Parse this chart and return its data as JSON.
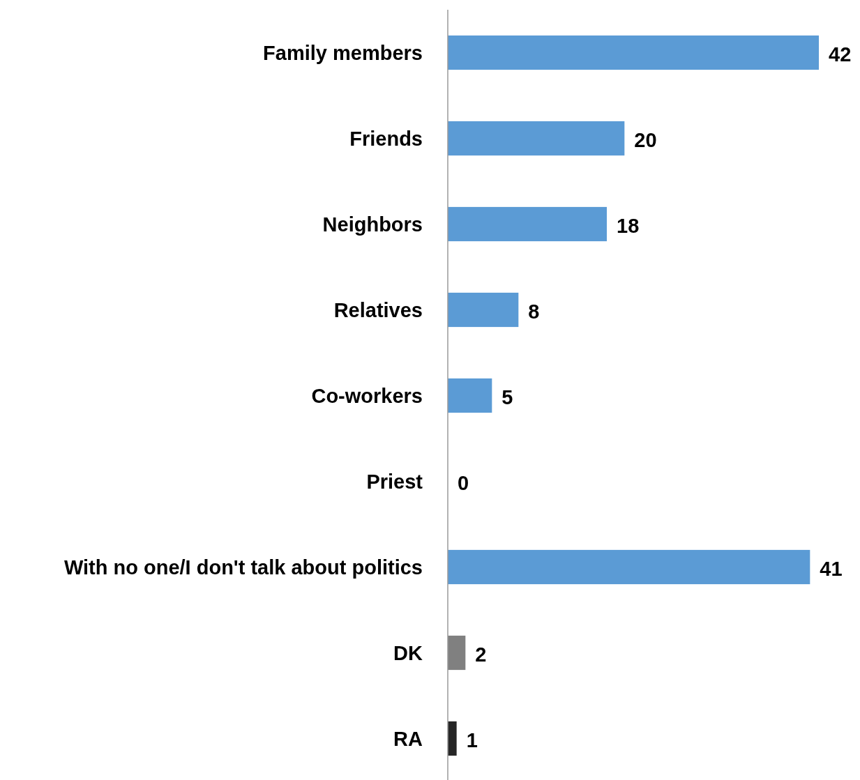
{
  "chart_data": {
    "type": "bar",
    "orientation": "horizontal",
    "categories": [
      "Family members",
      "Friends",
      "Neighbors",
      "Relatives",
      "Co-workers",
      "Priest",
      "With no one/I don't talk about politics",
      "DK",
      "RA"
    ],
    "values": [
      42,
      20,
      18,
      8,
      5,
      0,
      41,
      2,
      1
    ],
    "colors": [
      "#5b9bd5",
      "#5b9bd5",
      "#5b9bd5",
      "#5b9bd5",
      "#5b9bd5",
      "#5b9bd5",
      "#5b9bd5",
      "#808080",
      "#262626"
    ],
    "data_labels": true
  }
}
